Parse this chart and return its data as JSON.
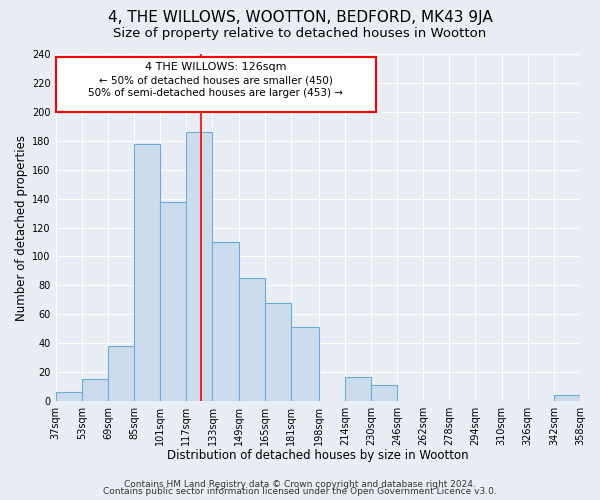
{
  "title": "4, THE WILLOWS, WOOTTON, BEDFORD, MK43 9JA",
  "subtitle": "Size of property relative to detached houses in Wootton",
  "xlabel": "Distribution of detached houses by size in Wootton",
  "ylabel": "Number of detached properties",
  "bin_edges": [
    37,
    53,
    69,
    85,
    101,
    117,
    133,
    149,
    165,
    181,
    198,
    214,
    230,
    246,
    262,
    278,
    294,
    310,
    326,
    342,
    358
  ],
  "bar_heights": [
    6,
    15,
    38,
    178,
    138,
    186,
    110,
    85,
    68,
    51,
    0,
    17,
    11,
    0,
    0,
    0,
    0,
    0,
    0,
    4
  ],
  "bar_color": "#cddcec",
  "bar_edge_color": "#6aaed6",
  "bar_linewidth": 0.8,
  "vline_x": 126,
  "vline_color": "red",
  "vline_linewidth": 1.2,
  "annotation_text_line1": "4 THE WILLOWS: 126sqm",
  "annotation_text_line2": "← 50% of detached houses are smaller (450)",
  "annotation_text_line3": "50% of semi-detached houses are larger (453) →",
  "xlim": [
    37,
    358
  ],
  "ylim": [
    0,
    240
  ],
  "yticks": [
    0,
    20,
    40,
    60,
    80,
    100,
    120,
    140,
    160,
    180,
    200,
    220,
    240
  ],
  "xtick_labels": [
    "37sqm",
    "53sqm",
    "69sqm",
    "85sqm",
    "101sqm",
    "117sqm",
    "133sqm",
    "149sqm",
    "165sqm",
    "181sqm",
    "198sqm",
    "214sqm",
    "230sqm",
    "246sqm",
    "262sqm",
    "278sqm",
    "294sqm",
    "310sqm",
    "326sqm",
    "342sqm",
    "358sqm"
  ],
  "footer_line1": "Contains HM Land Registry data © Crown copyright and database right 2024.",
  "footer_line2": "Contains public sector information licensed under the Open Government Licence v3.0.",
  "bg_color": "#e8eef4",
  "plot_bg_color": "#e8eef4",
  "grid_color": "white",
  "title_fontsize": 11,
  "subtitle_fontsize": 9.5,
  "axis_label_fontsize": 8.5,
  "tick_fontsize": 7,
  "footer_fontsize": 6.5,
  "ann_fontsize": 8
}
